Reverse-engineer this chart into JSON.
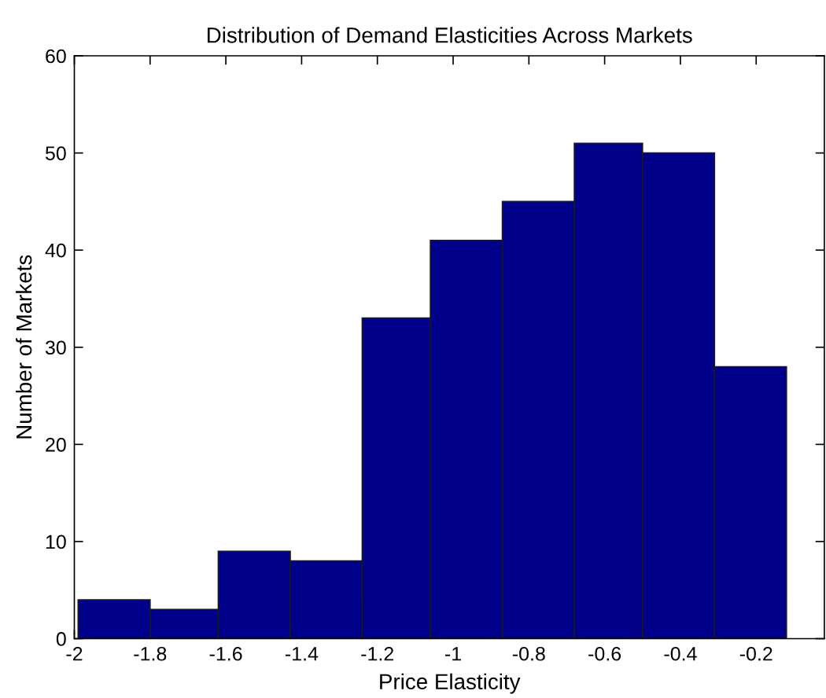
{
  "chart_data": {
    "type": "histogram",
    "title": "Distribution of Demand Elasticities Across Markets",
    "xlabel": "Price Elasticity",
    "ylabel": "Number of Markets",
    "bins": [
      -1.99,
      -1.8,
      -1.62,
      -1.43,
      -1.24,
      -1.06,
      -0.87,
      -0.68,
      -0.5,
      -0.31,
      -0.12
    ],
    "values": [
      4,
      3,
      9,
      8,
      33,
      41,
      45,
      51,
      50,
      28
    ],
    "color": "#00008b",
    "xlim": [
      -2,
      -0.02
    ],
    "xticks": [
      -2,
      -1.8,
      -1.6,
      -1.4,
      -1.2,
      -1,
      -0.8,
      -0.6,
      -0.4,
      -0.2
    ],
    "ylim": [
      0,
      60
    ],
    "yticks": [
      0,
      10,
      20,
      30,
      40,
      50,
      60
    ],
    "grid": false
  }
}
